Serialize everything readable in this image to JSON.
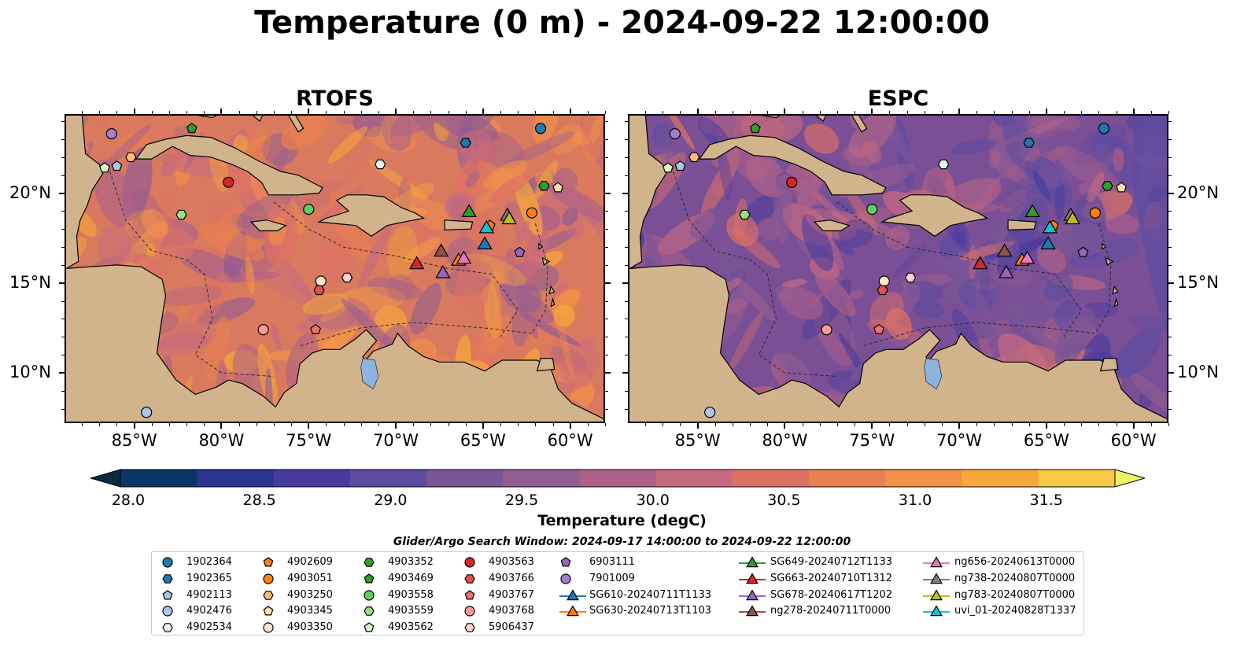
{
  "figure": {
    "title": "Temperature (0 m) - 2024-09-22 12:00:00",
    "search_window": "Glider/Argo Search Window: 2024-09-17 14:00:00 to 2024-09-22 12:00:00"
  },
  "colorbar": {
    "label": "Temperature (degC)",
    "ticks": [
      "28.0",
      "28.5",
      "29.0",
      "29.5",
      "30.0",
      "30.5",
      "31.0",
      "31.5"
    ],
    "range": [
      28.0,
      31.5
    ],
    "extend": "both",
    "colors": [
      "#0b2a3e",
      "#0c3464",
      "#2a3491",
      "#463b9d",
      "#5e4b9f",
      "#7a5597",
      "#935c92",
      "#ad6188",
      "#c66a7f",
      "#dd7166",
      "#ea8050",
      "#f3914a",
      "#f7a73c",
      "#f7c949",
      "#eef264"
    ]
  },
  "axes": {
    "x_ticks": [
      "85°W",
      "80°W",
      "75°W",
      "70°W",
      "65°W",
      "60°W"
    ],
    "y_ticks": [
      "20°N",
      "15°N",
      "10°N"
    ],
    "lon_range": [
      -89,
      -58
    ],
    "lat_range": [
      7.2,
      24.4
    ]
  },
  "chart_data": [
    {
      "type": "heatmap",
      "title": "RTOFS",
      "tone": "warm",
      "colormap": "thermal",
      "contours": "-1000 m isobath"
    },
    {
      "type": "heatmap",
      "title": "ESPC",
      "tone": "cool",
      "colormap": "thermal",
      "contours": "-1000 m isobath"
    }
  ],
  "land_color": "#d2b48c",
  "lake_color": "#8fb3df",
  "platforms": [
    {
      "id": "1902364",
      "marker": "circle",
      "color": "#1f77b4",
      "lon": -61.7,
      "lat": 23.6
    },
    {
      "id": "1902365",
      "marker": "hexagon",
      "color": "#1f77b4",
      "lon": -66.0,
      "lat": 22.8
    },
    {
      "id": "4902113",
      "marker": "pentagon",
      "color": "#aec7e8",
      "lon": -86.0,
      "lat": 21.5
    },
    {
      "id": "4902476",
      "marker": "circle",
      "color": "#aec7e8",
      "lon": -84.3,
      "lat": 7.8
    },
    {
      "id": "4902534",
      "marker": "hexagon",
      "color": "#e7f3fb",
      "lon": -70.9,
      "lat": 21.6
    },
    {
      "id": "4902609",
      "marker": "pentagon",
      "color": "#ff7f0e",
      "lon": -64.6,
      "lat": 18.2
    },
    {
      "id": "4903051",
      "marker": "circle",
      "color": "#ff7f0e",
      "lon": -62.2,
      "lat": 18.9
    },
    {
      "id": "4903250",
      "marker": "hexagon",
      "color": "#ffbb78",
      "lon": -85.2,
      "lat": 22.0
    },
    {
      "id": "4903345",
      "marker": "pentagon",
      "color": "#ffe0b0",
      "lon": -60.7,
      "lat": 20.3
    },
    {
      "id": "4903350",
      "marker": "circle",
      "color": "#ffe8cc",
      "lon": -74.3,
      "lat": 15.1
    },
    {
      "id": "4903352",
      "marker": "hexagon",
      "color": "#2ca02c",
      "lon": -61.5,
      "lat": 20.4
    },
    {
      "id": "4903469",
      "marker": "pentagon",
      "color": "#2ca02c",
      "lon": -81.7,
      "lat": 23.6
    },
    {
      "id": "4903558",
      "marker": "circle",
      "color": "#5ccf5c",
      "lon": -75.0,
      "lat": 19.1
    },
    {
      "id": "4903559",
      "marker": "hexagon",
      "color": "#98df8a",
      "lon": -82.3,
      "lat": 18.8
    },
    {
      "id": "4903562",
      "marker": "pentagon",
      "color": "#d8f8c8",
      "lon": -86.7,
      "lat": 21.4
    },
    {
      "id": "4903563",
      "marker": "circle",
      "color": "#d62728",
      "lon": -79.6,
      "lat": 20.6
    },
    {
      "id": "4903766",
      "marker": "hexagon",
      "color": "#e05050",
      "lon": -74.4,
      "lat": 14.6
    },
    {
      "id": "4903767",
      "marker": "pentagon",
      "color": "#f07070",
      "lon": -74.6,
      "lat": 12.4
    },
    {
      "id": "4903768",
      "marker": "circle",
      "color": "#ff9896",
      "lon": -77.6,
      "lat": 12.4
    },
    {
      "id": "5906437",
      "marker": "hexagon",
      "color": "#ffd0cc",
      "lon": -72.8,
      "lat": 15.3
    },
    {
      "id": "6903111",
      "marker": "pentagon",
      "color": "#9467bd",
      "lon": -62.9,
      "lat": 16.7
    },
    {
      "id": "7901009",
      "marker": "circle",
      "color": "#a57fcf",
      "lon": -86.3,
      "lat": 23.3
    },
    {
      "id": "SG610-20240711T1133",
      "marker": "triangle",
      "color": "#1f77b4",
      "lon": -64.9,
      "lat": 17.2
    },
    {
      "id": "SG630-20240713T1103",
      "marker": "triangle",
      "color": "#ff7f0e",
      "lon": -66.4,
      "lat": 16.3
    },
    {
      "id": "SG649-20240712T1133",
      "marker": "triangle",
      "color": "#2ca02c",
      "lon": -65.8,
      "lat": 19.0
    },
    {
      "id": "SG663-20240710T1312",
      "marker": "triangle",
      "color": "#d62728",
      "lon": -68.8,
      "lat": 16.1
    },
    {
      "id": "SG678-20240617T1202",
      "marker": "triangle",
      "color": "#9467bd",
      "lon": -67.3,
      "lat": 15.6
    },
    {
      "id": "ng278-20240711T0000",
      "marker": "triangle",
      "color": "#8c564b",
      "lon": -67.4,
      "lat": 16.8
    },
    {
      "id": "ng656-20240613T0000",
      "marker": "triangle",
      "color": "#e377c2",
      "lon": -66.1,
      "lat": 16.4
    },
    {
      "id": "ng738-20240807T0000",
      "marker": "triangle",
      "color": "#7f7f7f",
      "lon": -63.6,
      "lat": 18.8
    },
    {
      "id": "ng783-20240807T0000",
      "marker": "triangle",
      "color": "#bcbd22",
      "lon": -63.5,
      "lat": 18.6
    },
    {
      "id": "uvi_01-20240828T1337",
      "marker": "triangle",
      "color": "#17becf",
      "lon": -64.8,
      "lat": 18.1
    }
  ]
}
